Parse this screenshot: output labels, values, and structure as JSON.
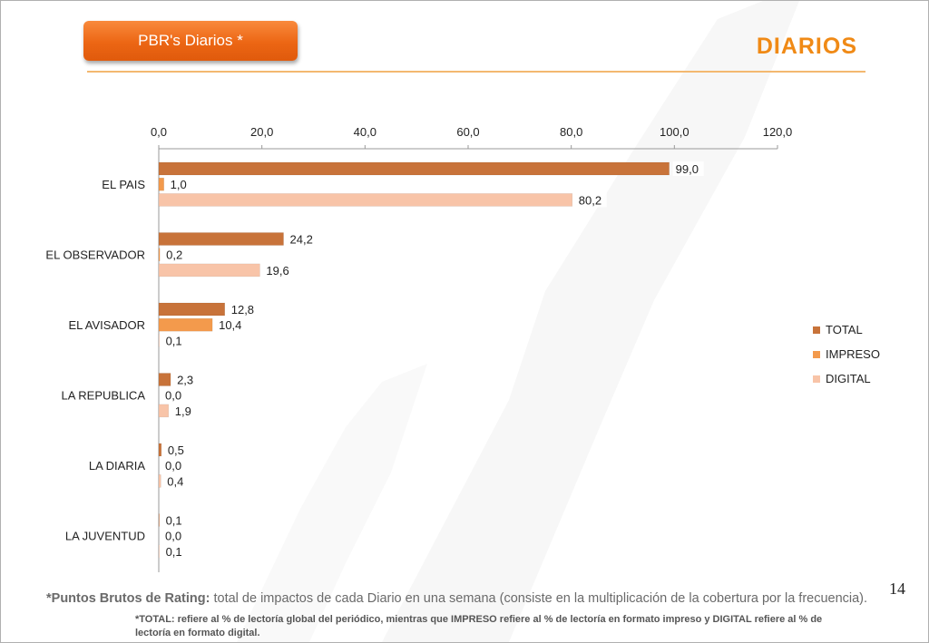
{
  "header": {
    "badge": "PBR's Diarios  *",
    "title": "DIARIOS"
  },
  "colors": {
    "accent": "#ec6614",
    "title": "#f08a16",
    "total": "#c8733a",
    "impreso": "#f39a4c",
    "digital": "#f8c4a8"
  },
  "chart_data": {
    "type": "bar",
    "orientation": "horizontal",
    "categories": [
      "EL PAIS",
      "EL OBSERVADOR",
      "EL AVISADOR",
      "LA REPUBLICA",
      "LA DIARIA",
      "LA JUVENTUD"
    ],
    "series": [
      {
        "name": "TOTAL",
        "values": [
          99.0,
          24.2,
          12.8,
          2.3,
          0.5,
          0.1
        ],
        "labels": [
          "99,0",
          "24,2",
          "12,8",
          "2,3",
          "0,5",
          "0,1"
        ]
      },
      {
        "name": "IMPRESO",
        "values": [
          1.0,
          0.2,
          10.4,
          0.0,
          0.0,
          0.0
        ],
        "labels": [
          "1,0",
          "0,2",
          "10,4",
          "0,0",
          "0,0",
          "0,0"
        ]
      },
      {
        "name": "DIGITAL",
        "values": [
          80.2,
          19.6,
          0.1,
          1.9,
          0.4,
          0.1
        ],
        "labels": [
          "80,2",
          "19,6",
          "0,1",
          "1,9",
          "0,4",
          "0,1"
        ]
      }
    ],
    "xlim": [
      0,
      120
    ],
    "ticks": [
      0,
      20,
      40,
      60,
      80,
      100,
      120
    ],
    "tick_labels": [
      "0,0",
      "20,0",
      "40,0",
      "60,0",
      "80,0",
      "100,0",
      "120,0"
    ],
    "axis_position": "top",
    "grid": false,
    "legend_position": "right"
  },
  "footer": {
    "page_number": "14",
    "note_bold": "*Puntos Brutos de Rating:",
    "note_text": " total de impactos de cada Diario en una semana (consiste en la multiplicación de la cobertura por la frecuencia).",
    "note_sub": "*TOTAL: refiere al % de lectoría global del periódico, mientras que IMPRESO refiere al % de lectoría en formato impreso y DIGITAL refiere al % de lectoría en formato digital."
  }
}
